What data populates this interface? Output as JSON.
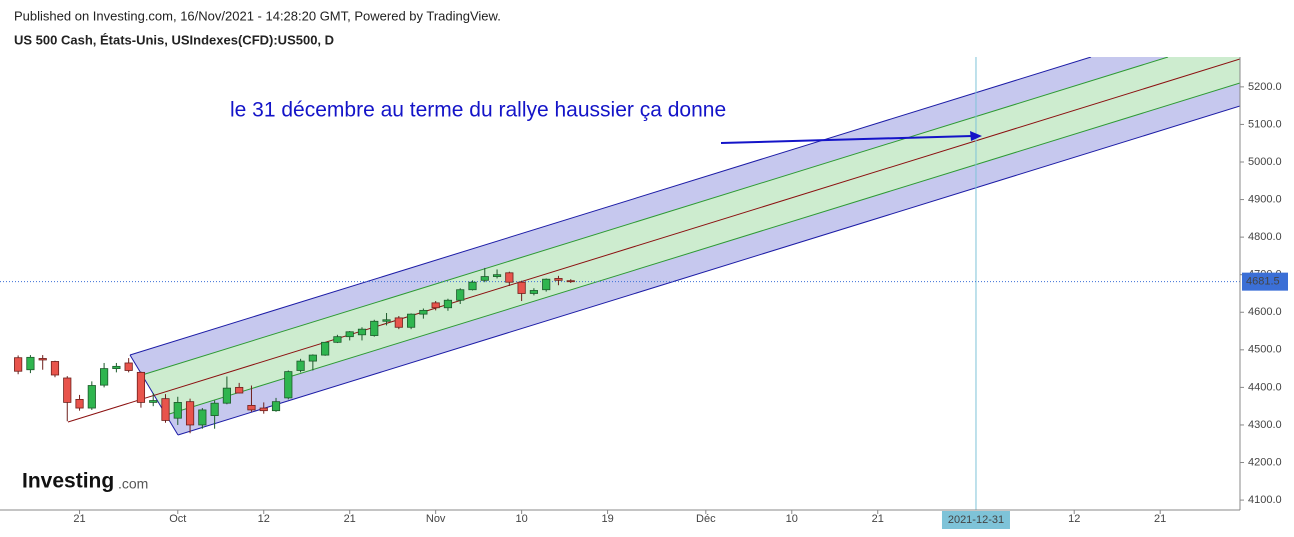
{
  "chart_data": {
    "type": "candlestick",
    "subtitle": "Published on Investing.com, 16/Nov/2021 - 14:28:20 GMT, Powered by TradingView.",
    "title": "US 500 Cash, États-Unis, USIndexes(CFD):US500, D",
    "annotation": "le 31 décembre au terme du rallye haussier ça donne",
    "brand": "Investing",
    "brand_suffix": ".com",
    "categories": [
      null,
      null,
      null,
      null,
      null,
      "21",
      null,
      null,
      null,
      null,
      null,
      null,
      null,
      "Oct",
      null,
      null,
      null,
      null,
      null,
      null,
      "12",
      null,
      null,
      null,
      null,
      null,
      null,
      "21",
      null,
      null,
      null,
      null,
      null,
      null,
      "Nov",
      null,
      null,
      null,
      null,
      null,
      null,
      "10",
      null,
      null,
      null,
      null,
      null,
      null,
      "19",
      null,
      null,
      null,
      null,
      null,
      null,
      null,
      "Déc",
      null,
      null,
      null,
      null,
      null,
      null,
      "10",
      null,
      null,
      null,
      null,
      null,
      null,
      "21",
      null,
      null,
      null,
      null,
      null,
      null,
      null,
      "2021-12-31",
      null,
      null,
      null,
      null,
      null,
      null,
      null,
      "12",
      null,
      null,
      null,
      null,
      null,
      null,
      "21",
      null,
      null,
      null,
      null,
      null,
      null
    ],
    "open": [
      4479,
      4447,
      4477,
      4469,
      4425,
      4368,
      4345,
      4406,
      4450,
      4465,
      4440,
      4360,
      4370,
      4318,
      4362,
      4300,
      4325,
      4358,
      4400,
      4352,
      4345,
      4338,
      4372,
      4445,
      4470,
      4486,
      4520,
      4535,
      4540,
      4538,
      4576,
      4585,
      4560,
      4595,
      4625,
      4612,
      4632,
      4660,
      4685,
      4695,
      4705,
      4680,
      4650,
      4660,
      4690,
      4684,
      null,
      null,
      null,
      null,
      null,
      null,
      null,
      null,
      null,
      null,
      null,
      null,
      null,
      null,
      null,
      null,
      null,
      null,
      null,
      null,
      null,
      null,
      null,
      null,
      null,
      null,
      null,
      null,
      null,
      null,
      null,
      null,
      null,
      null,
      null,
      null,
      null,
      null,
      null,
      null,
      null,
      null,
      null,
      null,
      null,
      null,
      null,
      null,
      null,
      null,
      null,
      null,
      null,
      null
    ],
    "high": [
      4485,
      4486,
      4486,
      4471,
      4430,
      4380,
      4416,
      4465,
      4465,
      4478,
      4442,
      4385,
      4382,
      4375,
      4370,
      4345,
      4365,
      4429,
      4412,
      4405,
      4360,
      4372,
      4445,
      4476,
      4488,
      4520,
      4540,
      4550,
      4560,
      4580,
      4598,
      4590,
      4597,
      4610,
      4630,
      4636,
      4664,
      4685,
      4718,
      4714,
      4708,
      4684,
      4664,
      4690,
      4697,
      4688,
      null,
      null,
      null,
      null,
      null,
      null,
      null,
      null,
      null,
      null,
      null,
      null,
      null,
      null,
      null,
      null,
      null,
      null,
      null,
      null,
      null,
      null,
      null,
      null,
      null,
      null,
      null,
      null,
      null,
      null,
      null,
      null,
      null,
      null,
      null,
      null,
      null,
      null,
      null,
      null,
      null,
      null,
      null,
      null,
      null,
      null,
      null,
      null,
      null,
      null,
      null,
      null,
      null,
      null
    ],
    "low": [
      4435,
      4438,
      4447,
      4427,
      4310,
      4338,
      4340,
      4400,
      4440,
      4440,
      4346,
      4350,
      4306,
      4300,
      4278,
      4290,
      4290,
      4355,
      4384,
      4335,
      4330,
      4335,
      4368,
      4440,
      4445,
      4484,
      4518,
      4525,
      4525,
      4535,
      4565,
      4555,
      4555,
      4583,
      4605,
      4604,
      4622,
      4658,
      4680,
      4690,
      4670,
      4630,
      4645,
      4655,
      4672,
      4678,
      null,
      null,
      null,
      null,
      null,
      null,
      null,
      null,
      null,
      null,
      null,
      null,
      null,
      null,
      null,
      null,
      null,
      null,
      null,
      null,
      null,
      null,
      null,
      null,
      null,
      null,
      null,
      null,
      null,
      null,
      null,
      null,
      null,
      null,
      null,
      null,
      null,
      null,
      null,
      null,
      null,
      null,
      null,
      null,
      null,
      null,
      null,
      null,
      null,
      null,
      null,
      null,
      null,
      null
    ],
    "close": [
      4443,
      4480,
      4473,
      4433,
      4360,
      4345,
      4405,
      4450,
      4456,
      4445,
      4360,
      4365,
      4312,
      4360,
      4300,
      4340,
      4358,
      4398,
      4385,
      4340,
      4338,
      4362,
      4442,
      4470,
      4486,
      4520,
      4535,
      4548,
      4555,
      4576,
      4580,
      4560,
      4595,
      4605,
      4612,
      4632,
      4660,
      4680,
      4695,
      4700,
      4680,
      4650,
      4658,
      4688,
      4685,
      4681.5,
      null,
      null,
      null,
      null,
      null,
      null,
      null,
      null,
      null,
      null,
      null,
      null,
      null,
      null,
      null,
      null,
      null,
      null,
      null,
      null,
      null,
      null,
      null,
      null,
      null,
      null,
      null,
      null,
      null,
      null,
      null,
      null,
      null,
      null,
      null,
      null,
      null,
      null,
      null,
      null,
      null,
      null,
      null,
      null,
      null,
      null,
      null,
      null,
      null,
      null,
      null,
      null,
      null,
      null
    ],
    "up_color": "#2fb54f",
    "down_color": "#e8544c",
    "last_price": 4681.5,
    "last_price_color": "#3b6fd6",
    "ylim": [
      4073.6,
      5279.5
    ],
    "yticks": [
      {
        "value": 5200,
        "label": "5200.0"
      },
      {
        "value": 5100,
        "label": "5100.0"
      },
      {
        "value": 5000,
        "label": "5000.0"
      },
      {
        "value": 4900,
        "label": "4900.0"
      },
      {
        "value": 4800,
        "label": "4800.0"
      },
      {
        "value": 4700,
        "label": "4700.0"
      },
      {
        "value": 4600,
        "label": "4600.0"
      },
      {
        "value": 4500,
        "label": "4500.0"
      },
      {
        "value": 4400,
        "label": "4400.0"
      },
      {
        "value": 4300,
        "label": "4300.0"
      },
      {
        "value": 4200,
        "label": "4200.0"
      },
      {
        "value": 4100,
        "label": "4100.0"
      }
    ],
    "grid": false,
    "highlight_category": 78
  }
}
